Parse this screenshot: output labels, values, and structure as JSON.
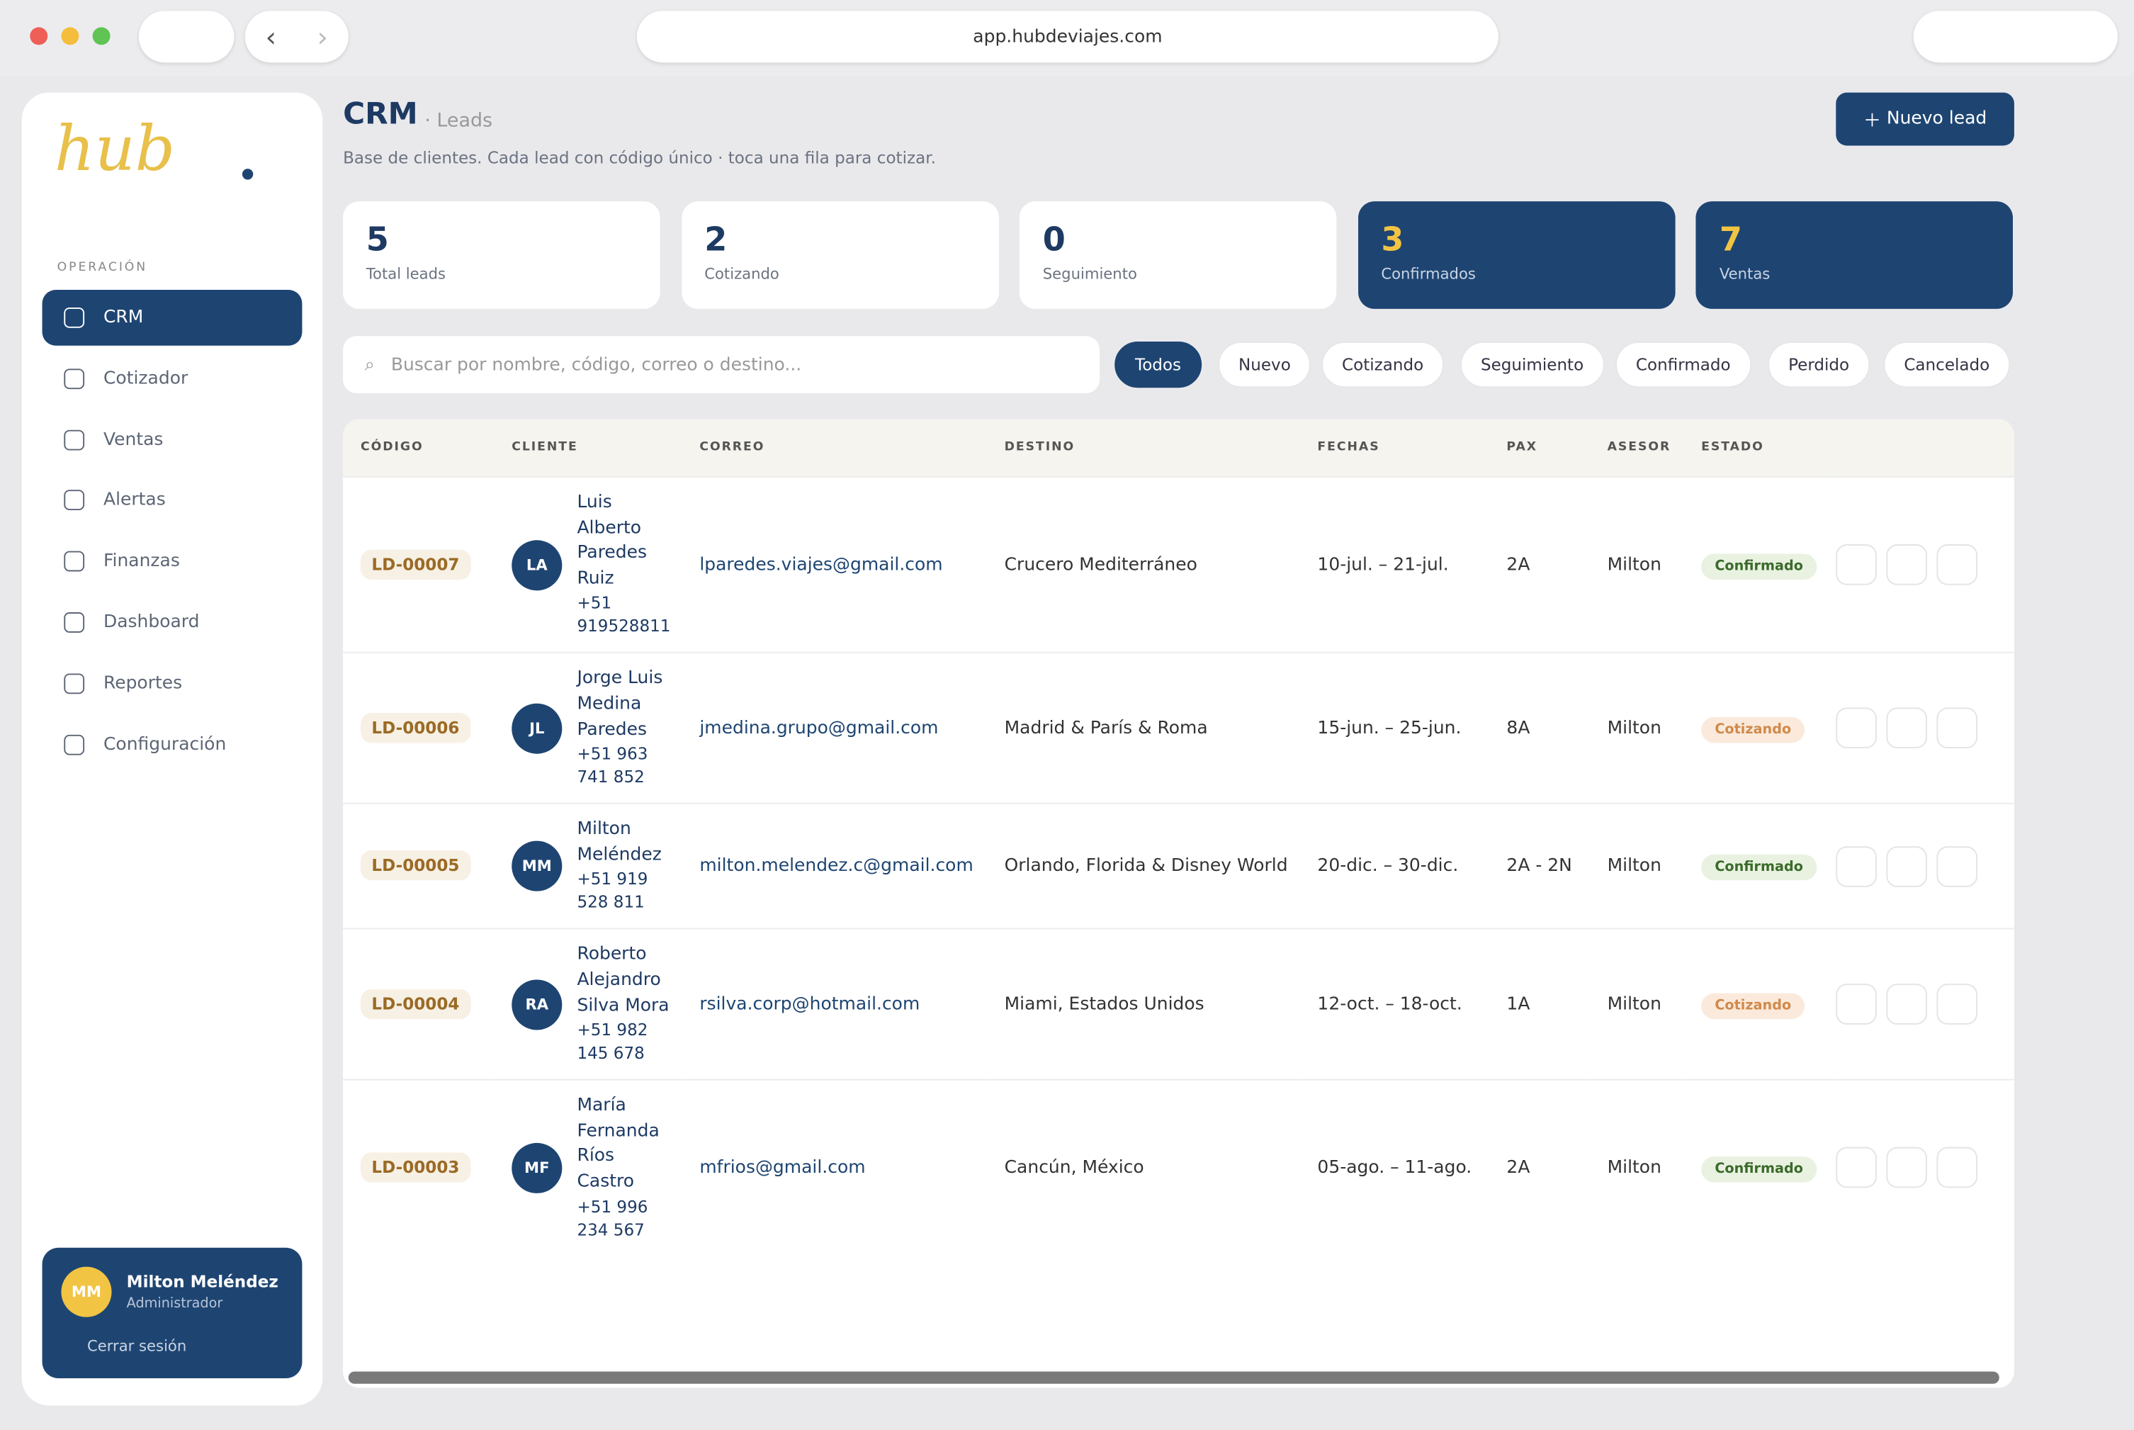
{
  "browser": {
    "url": "app.hubdeviajes.com"
  },
  "sidebar": {
    "logo": "hub",
    "section": "OPERACIÓN",
    "nav": [
      "CRM",
      "Cotizador",
      "Ventas",
      "Alertas",
      "Finanzas",
      "Dashboard",
      "Reportes",
      "Configuración"
    ],
    "active": 0,
    "user": {
      "initials": "MM",
      "name": "Milton Meléndez",
      "role": "Administrador",
      "logout": "Cerrar sesión"
    }
  },
  "header": {
    "title": "CRM",
    "subtitle": "· Leads",
    "description": "Base de clientes. Cada lead con código único · toca una fila para cotizar.",
    "button": "Nuevo lead"
  },
  "stats": [
    {
      "value": 5,
      "label": "Total leads",
      "dark": false
    },
    {
      "value": 2,
      "label": "Cotizando",
      "dark": false
    },
    {
      "value": 0,
      "label": "Seguimiento",
      "dark": false
    },
    {
      "value": 3,
      "label": "Confirmados",
      "dark": true
    },
    {
      "value": 7,
      "label": "Ventas",
      "dark": true
    }
  ],
  "search": {
    "placeholder": "Buscar por nombre, código, correo o destino..."
  },
  "filters": [
    "Todos",
    "Nuevo",
    "Cotizando",
    "Seguimiento",
    "Confirmado",
    "Perdido",
    "Cancelado"
  ],
  "active_filter": 0,
  "table": {
    "headers": [
      "CÓDIGO",
      "CLIENTE",
      "CORREO",
      "DESTINO",
      "FECHAS",
      "PAX",
      "ASESOR",
      "ESTADO"
    ],
    "rows": [
      {
        "code": "LD-00007",
        "initials": "LA",
        "name": "Luis Alberto Paredes Ruiz",
        "phone": "+51 919528811",
        "email": "lparedes.viajes@gmail.com",
        "destination": "Crucero Mediterráneo",
        "dates": "10-jul. – 21-jul.",
        "pax": "2A",
        "advisor": "Milton",
        "status": "Confirmado",
        "status_color": "#3b6b2a",
        "status_bg": "#e9f2e1"
      },
      {
        "code": "LD-00006",
        "initials": "JL",
        "name": "Jorge Luis Medina Paredes",
        "phone": "+51 963 741 852",
        "email": "jmedina.grupo@gmail.com",
        "destination": "Madrid & París & Roma",
        "dates": "15-jun. – 25-jun.",
        "pax": "8A",
        "advisor": "Milton",
        "status": "Cotizando",
        "status_color": "#d08a4c",
        "status_bg": "#fbeadb"
      },
      {
        "code": "LD-00005",
        "initials": "MM",
        "name": "Milton Meléndez",
        "phone": "+51 919 528 811",
        "email": "milton.melendez.c@gmail.com",
        "destination": "Orlando, Florida & Disney World",
        "dates": "20-dic. – 30-dic.",
        "pax": "2A - 2N",
        "advisor": "Milton",
        "status": "Confirmado",
        "status_color": "#3b6b2a",
        "status_bg": "#e9f2e1"
      },
      {
        "code": "LD-00004",
        "initials": "RA",
        "name": "Roberto Alejandro Silva Mora",
        "phone": "+51 982 145 678",
        "email": "rsilva.corp@hotmail.com",
        "destination": "Miami, Estados Unidos",
        "dates": "12-oct. – 18-oct.",
        "pax": "1A",
        "advisor": "Milton",
        "status": "Cotizando",
        "status_color": "#d08a4c",
        "status_bg": "#fbeadb"
      },
      {
        "code": "LD-00003",
        "initials": "MF",
        "name": "María Fernanda Ríos Castro",
        "phone": "+51 996 234 567",
        "email": "mfrios@gmail.com",
        "destination": "Cancún, México",
        "dates": "05-ago. – 11-ago.",
        "pax": "2A",
        "advisor": "Milton",
        "status": "Confirmado",
        "status_color": "#3b6b2a",
        "status_bg": "#e9f2e1"
      }
    ]
  }
}
